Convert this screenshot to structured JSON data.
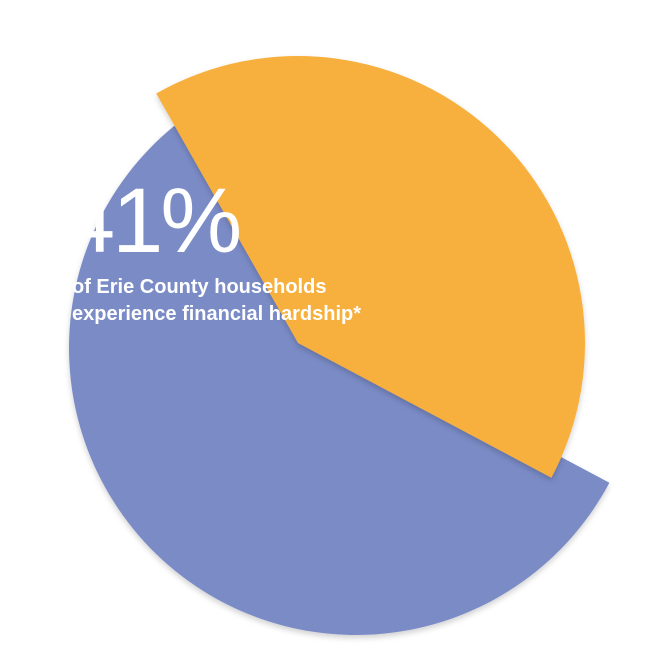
{
  "chart_data": {
    "type": "pie",
    "slices": [
      {
        "label": "of Erie County households experience financial hardship*",
        "value": 41,
        "color": "#f7b03d",
        "exploded": true
      },
      {
        "label": "",
        "value": 59,
        "color": "#7a8bc6",
        "exploded": false
      }
    ],
    "annotation": {
      "value_text": "41%",
      "caption_lines": [
        "of Erie County households",
        "experience financial hardship*"
      ]
    },
    "legend": "none",
    "grid": false
  }
}
